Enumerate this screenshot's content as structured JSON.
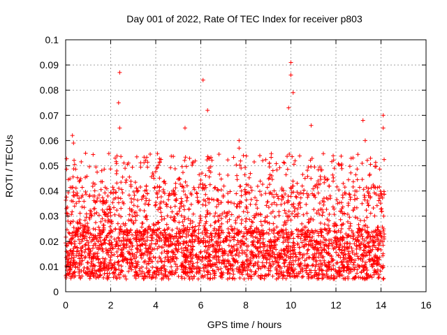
{
  "chart_data": {
    "type": "scatter",
    "title": "Day 001 of 2022, Rate Of TEC Index for receiver p803",
    "xlabel": "GPS time / hours",
    "ylabel": "ROTI / TECUs",
    "xlim": [
      0,
      16
    ],
    "ylim": [
      0,
      0.1
    ],
    "x_ticks": [
      0,
      2,
      4,
      6,
      8,
      10,
      12,
      14,
      16
    ],
    "x_tick_labels": [
      "0",
      "2",
      "4",
      "6",
      "8",
      "10",
      "12",
      "14",
      "16"
    ],
    "y_ticks": [
      0,
      0.01,
      0.02,
      0.03,
      0.04,
      0.05,
      0.06,
      0.07,
      0.08,
      0.09,
      0.1
    ],
    "y_tick_labels": [
      "0",
      "0.01",
      "0.02",
      "0.03",
      "0.04",
      "0.05",
      "0.06",
      "0.07",
      "0.08",
      "0.09",
      "0.1"
    ],
    "grid": true,
    "marker": "+",
    "series": [
      {
        "name": "ROTI",
        "color": "#ff0000",
        "x_range": [
          0,
          14.15
        ],
        "typical_range": [
          0.005,
          0.025
        ],
        "notable_points": [
          {
            "x": 0.3,
            "y": 0.062
          },
          {
            "x": 0.35,
            "y": 0.059
          },
          {
            "x": 2.4,
            "y": 0.087
          },
          {
            "x": 2.35,
            "y": 0.075
          },
          {
            "x": 2.4,
            "y": 0.065
          },
          {
            "x": 5.3,
            "y": 0.065
          },
          {
            "x": 6.1,
            "y": 0.084
          },
          {
            "x": 6.3,
            "y": 0.072
          },
          {
            "x": 7.7,
            "y": 0.06
          },
          {
            "x": 7.7,
            "y": 0.057
          },
          {
            "x": 9.9,
            "y": 0.073
          },
          {
            "x": 10.0,
            "y": 0.091
          },
          {
            "x": 10.0,
            "y": 0.086
          },
          {
            "x": 10.1,
            "y": 0.079
          },
          {
            "x": 10.9,
            "y": 0.066
          },
          {
            "x": 13.2,
            "y": 0.068
          },
          {
            "x": 13.3,
            "y": 0.06
          },
          {
            "x": 14.1,
            "y": 0.07
          },
          {
            "x": 14.1,
            "y": 0.065
          }
        ]
      }
    ]
  }
}
